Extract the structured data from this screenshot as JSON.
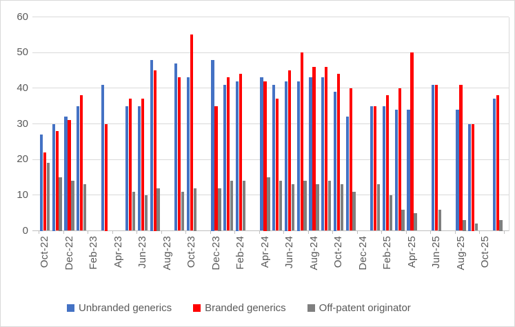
{
  "chart_data": {
    "type": "bar",
    "title": "",
    "categories": [
      "Oct-22",
      "Nov-22",
      "Dec-22",
      "Jan-23",
      "Feb-23",
      "Mar-23",
      "Apr-23",
      "May-23",
      "Jun-23",
      "Jul-23",
      "Aug-23",
      "Sep-23",
      "Oct-23",
      "Nov-23",
      "Dec-23",
      "Jan-24",
      "Feb-24",
      "Mar-24",
      "Apr-24",
      "May-24",
      "Jun-24",
      "Jul-24",
      "Aug-24",
      "Sep-24",
      "Oct-24",
      "Nov-24",
      "Dec-24",
      "Jan-25",
      "Feb-25",
      "Mar-25",
      "Apr-25",
      "May-25",
      "Jun-25",
      "Jul-25",
      "Aug-25",
      "Sep-25",
      "Oct-25",
      "Nov-25"
    ],
    "x_tick_labels": [
      "Oct-22",
      "Dec-22",
      "Feb-23",
      "Apr-23",
      "Jun-23",
      "Aug-23",
      "Oct-23",
      "Dec-23",
      "Feb-24",
      "Apr-24",
      "Jun-24",
      "Aug-24",
      "Oct-24",
      "Dec-24",
      "Feb-25",
      "Apr-25",
      "Jun-25",
      "Aug-25",
      "Oct-25"
    ],
    "series": [
      {
        "name": "Unbranded generics",
        "color": "#4472C4",
        "values": [
          27,
          30,
          32,
          35,
          null,
          41,
          null,
          35,
          35,
          48,
          null,
          47,
          43,
          null,
          48,
          41,
          42,
          null,
          43,
          41,
          42,
          42,
          43,
          43,
          39,
          32,
          null,
          35,
          35,
          34,
          34,
          null,
          41,
          null,
          34,
          30,
          null,
          37
        ]
      },
      {
        "name": "Branded generics",
        "color": "#FF0000",
        "values": [
          22,
          28,
          31,
          38,
          null,
          30,
          null,
          37,
          37,
          45,
          null,
          43,
          55,
          null,
          35,
          43,
          44,
          null,
          42,
          37,
          45,
          50,
          46,
          46,
          44,
          40,
          null,
          35,
          38,
          40,
          50,
          null,
          41,
          null,
          41,
          30,
          null,
          38
        ]
      },
      {
        "name": "Off-patent originator",
        "color": "#7F7F7F",
        "values": [
          19,
          15,
          14,
          13,
          null,
          null,
          null,
          11,
          10,
          12,
          null,
          11,
          12,
          null,
          12,
          14,
          14,
          null,
          15,
          14,
          13,
          14,
          13,
          14,
          13,
          11,
          null,
          13,
          10,
          6,
          5,
          null,
          6,
          null,
          3,
          2,
          null,
          3
        ]
      }
    ],
    "ylim": [
      0,
      60
    ],
    "ytick_interval": 10,
    "y_tick_labels": [
      "0",
      "10",
      "20",
      "30",
      "40",
      "50",
      "60"
    ],
    "grid": true,
    "legend_position": "bottom",
    "x_labels_rotated": true
  }
}
